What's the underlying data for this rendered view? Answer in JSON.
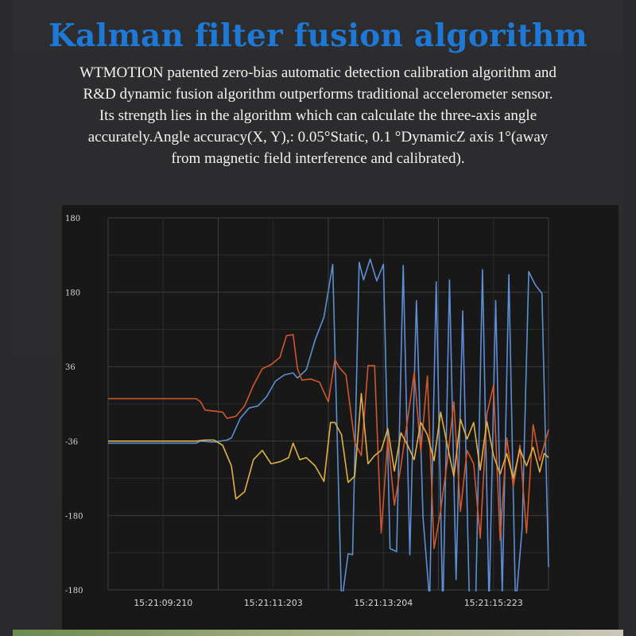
{
  "header": {
    "title": "Kalman filter fusion algorithm",
    "description": "WTMOTION patented zero-bias automatic detection calibration algorithm and R&D dynamic fusion algorithm outperforms traditional accelerometer sensor. Its strength lies in the algorithm which can calculate the three-axis angle accurately.Angle accuracy(X, Y),: 0.05°Static,  0.1 °DynamicZ axis 1°(away from magnetic field interference and calibrated)."
  },
  "chart_data": {
    "type": "line",
    "title": "",
    "xlabel": "",
    "ylabel": "",
    "y_tick_labels": [
      "180",
      "180",
      "36",
      "-36",
      "-180",
      "-180"
    ],
    "x_tick_labels": [
      "15:21:09:210",
      "15:21:11:203",
      "15:21:13:204",
      "15:21:15:223"
    ],
    "ylim": [
      -180,
      180
    ],
    "xlim": [
      0,
      100
    ],
    "grid": true,
    "colors": {
      "blue": "#5d8fd6",
      "orange": "#d2572b",
      "yellow": "#e0b046",
      "grid_major": "#3e3e3e",
      "grid_minor": "#2c2c2c"
    },
    "series": [
      {
        "color": "#5d8fd6",
        "x": [
          0,
          20,
          21,
          24,
          27,
          28,
          30,
          32,
          34,
          36,
          38,
          40,
          42,
          43,
          45,
          47,
          49,
          51,
          53,
          54.5,
          55.5,
          57,
          58,
          59.5,
          61,
          62.5,
          64,
          65.5,
          67,
          68.5,
          70,
          71.5,
          73,
          74.5,
          76,
          77.5,
          79,
          80.5,
          82,
          83.5,
          85,
          86.5,
          88,
          89.5,
          91,
          92.5,
          94,
          95.5,
          97,
          98.5,
          100
        ],
        "y": [
          -38,
          -38,
          -36,
          -37,
          -35,
          -33,
          -14,
          -4,
          -2,
          7,
          22,
          28,
          30,
          25,
          33,
          62,
          84,
          135,
          -193,
          -145,
          -146,
          137,
          120,
          140,
          119,
          135,
          -140,
          -143,
          134,
          -146,
          100,
          -110,
          -190,
          118,
          -202,
          120,
          -170,
          90,
          -188,
          -183,
          130,
          -196,
          100,
          -183,
          125,
          -197,
          -120,
          128,
          115,
          107,
          -158
        ]
      },
      {
        "color": "#d2572b",
        "x": [
          0,
          20,
          21,
          22,
          24,
          26,
          27,
          29,
          31,
          33,
          35,
          37,
          39,
          40.5,
          42,
          43,
          44,
          46,
          48,
          50,
          51.5,
          52.5,
          54,
          56,
          57.5,
          59,
          60.5,
          62,
          63.5,
          65,
          66.5,
          68,
          69.5,
          71,
          72.5,
          74,
          75.5,
          77,
          78.5,
          80,
          81.5,
          83,
          84.5,
          86,
          87.5,
          89,
          90.5,
          92,
          93.5,
          95,
          96.5,
          98,
          100
        ],
        "y": [
          5,
          5,
          2,
          -6,
          -7,
          -8,
          -14,
          -12,
          -2,
          18,
          34,
          38,
          45,
          66,
          67,
          34,
          23,
          24,
          21,
          2,
          43,
          35,
          28,
          -37,
          -50,
          37,
          37,
          -125,
          -33,
          -98,
          -60,
          -15,
          30,
          -46,
          27,
          -140,
          -103,
          -56,
          2,
          -104,
          -45,
          -58,
          -130,
          -10,
          18,
          -132,
          -33,
          -80,
          -40,
          -125,
          -20,
          -55,
          -25
        ]
      },
      {
        "color": "#e0b046",
        "x": [
          0,
          20,
          22,
          24,
          26,
          28,
          29,
          31,
          33,
          35,
          37,
          39,
          41,
          42,
          43.5,
          45,
          47,
          49,
          50.5,
          51.5,
          53,
          54.5,
          56,
          57.5,
          59,
          60.5,
          62,
          63.5,
          65,
          66.5,
          68,
          69.5,
          71,
          72.5,
          74,
          75.5,
          77,
          78.5,
          80,
          81.5,
          83,
          84.5,
          86,
          87.5,
          89,
          90.5,
          92,
          93.5,
          95,
          96.5,
          98,
          99,
          100
        ],
        "y": [
          -36,
          -36,
          -35,
          -35,
          -40,
          -60,
          -92,
          -85,
          -54,
          -45,
          -58,
          -56,
          -52,
          -38,
          -54,
          -52,
          -60,
          -75,
          -18,
          -18,
          -30,
          -76,
          -70,
          10,
          -58,
          -50,
          -45,
          -24,
          -65,
          -28,
          -40,
          -54,
          -18,
          -30,
          -55,
          -8,
          -40,
          -70,
          -15,
          -34,
          -18,
          -64,
          -17,
          -50,
          -68,
          -48,
          -72,
          -44,
          -60,
          -42,
          -66,
          -48,
          -52
        ]
      }
    ]
  }
}
